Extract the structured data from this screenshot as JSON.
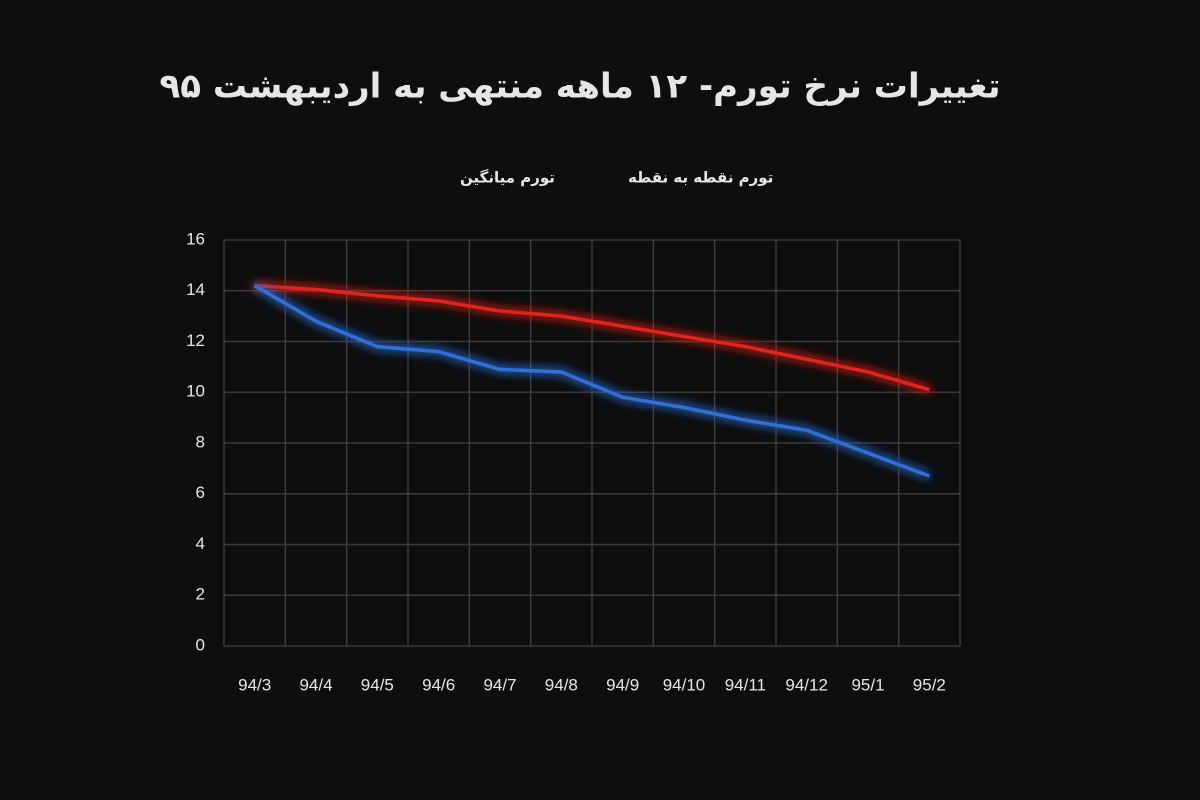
{
  "chart_data": {
    "type": "line",
    "title": "تغییرات نرخ تورم- ۱۲ ماهه منتهی به اردیبهشت ۹۵",
    "categories": [
      "94/3",
      "94/4",
      "94/5",
      "94/6",
      "94/7",
      "94/8",
      "94/9",
      "94/10",
      "94/11",
      "94/12",
      "95/1",
      "95/2"
    ],
    "series": [
      {
        "name": "تورم نقطه به نقطه",
        "color": "#e0261f",
        "values": [
          14.2,
          14.05,
          13.8,
          13.6,
          13.2,
          13.0,
          12.6,
          12.2,
          11.8,
          11.3,
          10.8,
          10.1
        ]
      },
      {
        "name": "تورم میانگین",
        "color": "#2f6fd8",
        "values": [
          14.2,
          12.8,
          11.8,
          11.6,
          10.9,
          10.8,
          9.8,
          9.4,
          8.9,
          8.5,
          7.6,
          6.7
        ]
      }
    ],
    "ylim": [
      0,
      16
    ],
    "yticks": [
      0,
      2,
      4,
      6,
      8,
      10,
      12,
      14,
      16
    ],
    "grid": true
  }
}
